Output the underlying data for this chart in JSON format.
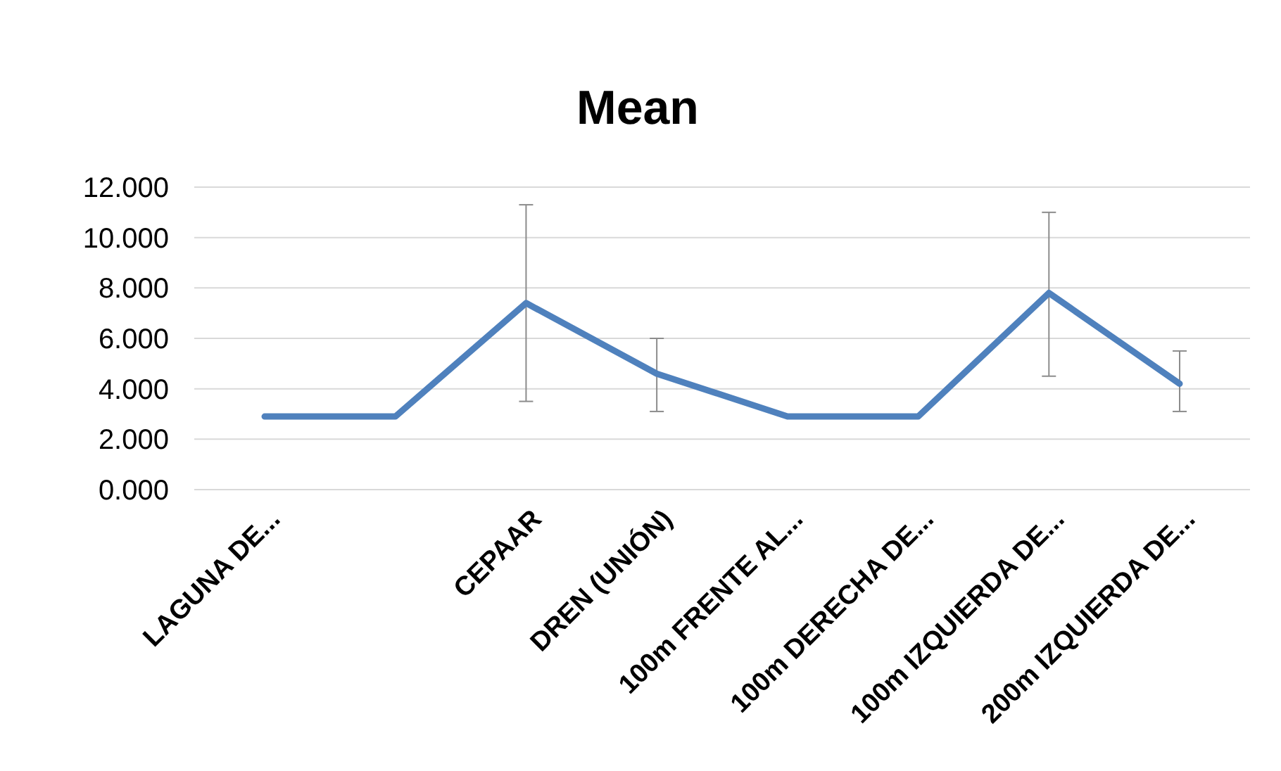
{
  "chart_data": {
    "type": "line",
    "title": "Mean",
    "categories": [
      "LAGUNA DE...",
      null,
      "CEPAAR",
      "DREN (UNIÓN)",
      "100m FRENTE AL...",
      "100m DERECHA DE...",
      "100m IZQUIERDA DE...",
      "200m IZQUIERDA DE..."
    ],
    "series": [
      {
        "color": "#4f81bd",
        "values": [
          2.9,
          2.9,
          7.4,
          4.6,
          2.9,
          2.9,
          7.8,
          4.2
        ],
        "errors": [
          null,
          null,
          [
            3.5,
            11.3
          ],
          [
            3.1,
            6.0
          ],
          null,
          null,
          [
            4.5,
            11.0
          ],
          [
            3.1,
            5.5
          ]
        ]
      }
    ],
    "ylim": [
      0,
      12
    ],
    "yticks": [
      {
        "value": 0,
        "label": "0.000"
      },
      {
        "value": 2,
        "label": "2.000"
      },
      {
        "value": 4,
        "label": "4.000"
      },
      {
        "value": 6,
        "label": "6.000"
      },
      {
        "value": 8,
        "label": "8.000"
      },
      {
        "value": 10,
        "label": "10.000"
      },
      {
        "value": 12,
        "label": "12.000"
      }
    ],
    "grid": "y",
    "marker": "none",
    "line_style": "solid"
  }
}
